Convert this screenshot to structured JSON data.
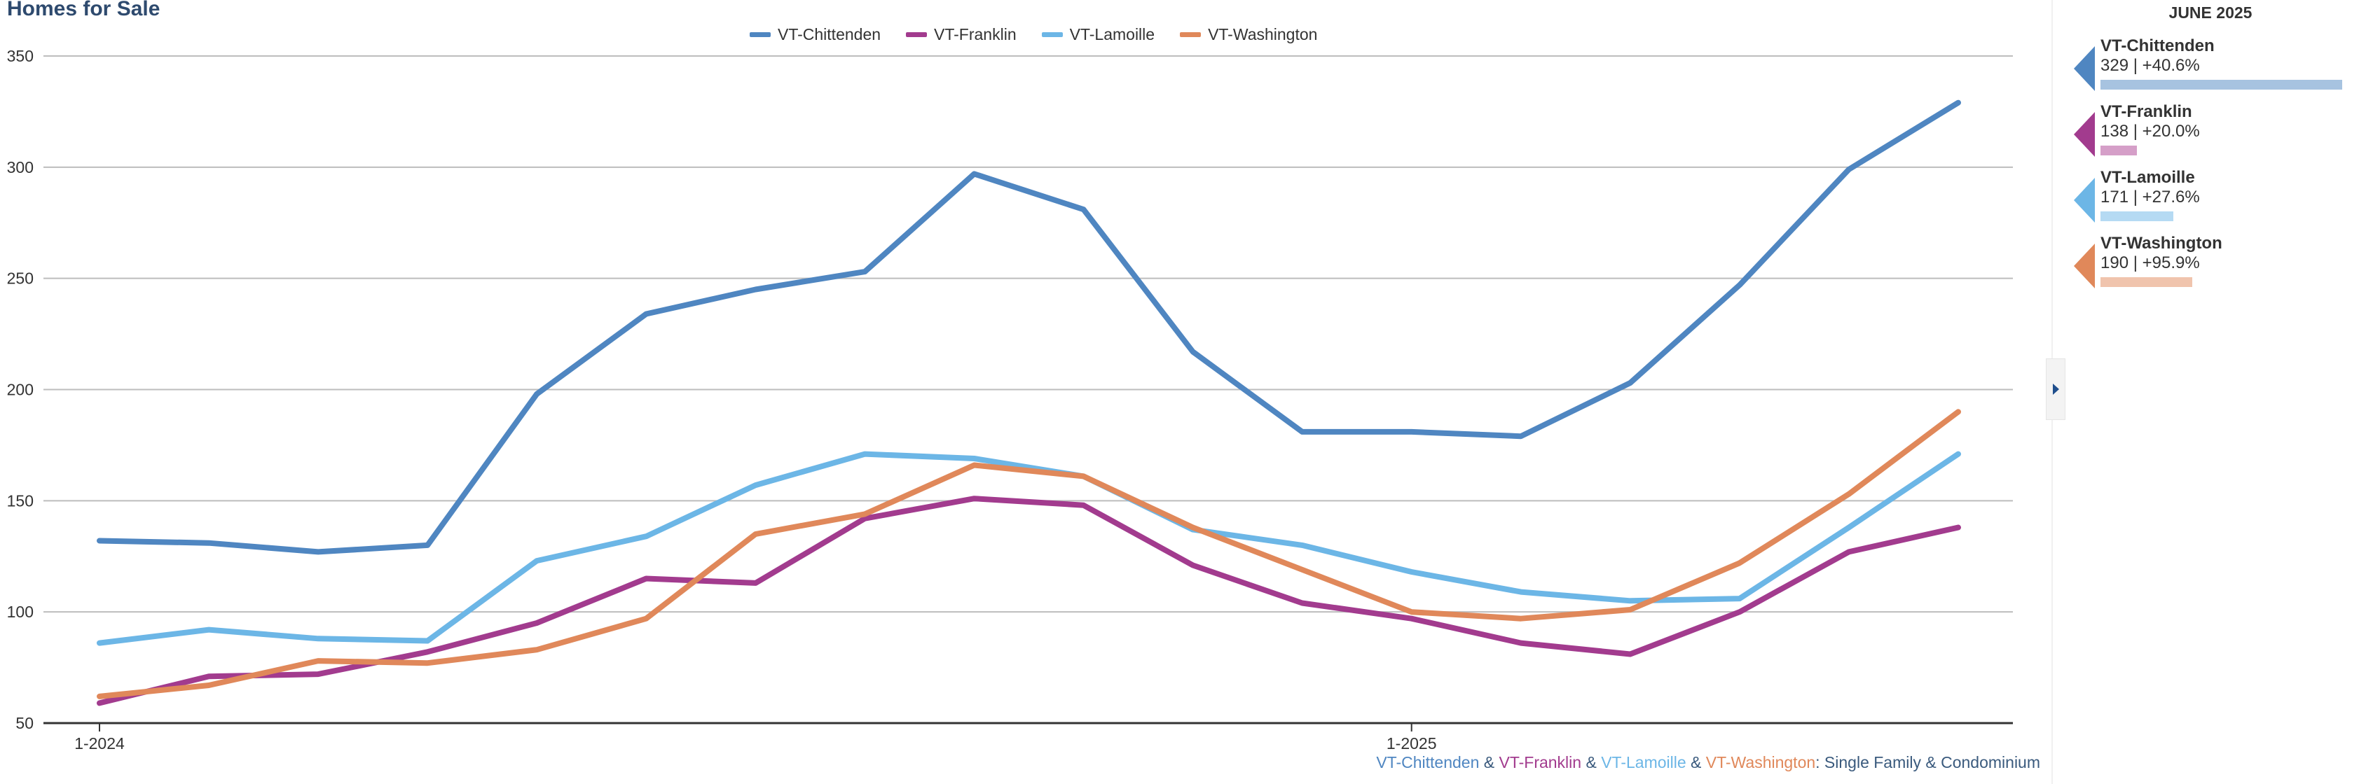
{
  "title": "Homes for Sale",
  "caption": {
    "parts": [
      {
        "text": "VT-Chittenden",
        "color": "#4f86c1"
      },
      {
        "text": " & ",
        "color": "#3a5a7d"
      },
      {
        "text": "VT-Franklin",
        "color": "#a23b8e"
      },
      {
        "text": " & ",
        "color": "#3a5a7d"
      },
      {
        "text": "VT-Lamoille",
        "color": "#6cb6e6"
      },
      {
        "text": " & ",
        "color": "#3a5a7d"
      },
      {
        "text": "VT-Washington",
        "color": "#e0885a"
      },
      {
        "text": ": Single Family & Condominium",
        "color": "#3a5a7d"
      }
    ]
  },
  "side_panel": {
    "heading": "JUNE 2025",
    "regions": [
      {
        "name": "VT-Chittenden",
        "value": "329 | +40.6%",
        "color": "#4f86c1",
        "bar_color": "#a7c3e0",
        "bar_fraction": 1.0
      },
      {
        "name": "VT-Franklin",
        "value": "138 | +20.0%",
        "color": "#a23b8e",
        "bar_color": "#d59fc8",
        "bar_fraction": 0.15
      },
      {
        "name": "VT-Lamoille",
        "value": "171 | +27.6%",
        "color": "#6cb6e6",
        "bar_color": "#b5daf3",
        "bar_fraction": 0.3
      },
      {
        "name": "VT-Washington",
        "value": "190 | +95.9%",
        "color": "#e0885a",
        "bar_color": "#f0c4ad",
        "bar_fraction": 0.38
      }
    ]
  },
  "chart_data": {
    "type": "line",
    "x": [
      "1-2024",
      "2-2024",
      "3-2024",
      "4-2024",
      "5-2024",
      "6-2024",
      "7-2024",
      "8-2024",
      "9-2024",
      "10-2024",
      "11-2024",
      "12-2024",
      "1-2025",
      "2-2025",
      "3-2025",
      "4-2025",
      "5-2025",
      "6-2025"
    ],
    "x_tick_labels": [
      "1-2024",
      "1-2025"
    ],
    "y_ticks": [
      50,
      100,
      150,
      200,
      250,
      300,
      350
    ],
    "ylim": [
      50,
      350
    ],
    "grid": true,
    "legend_position": "top-center",
    "series": [
      {
        "name": "VT-Chittenden",
        "color": "#4f86c1",
        "values": [
          132,
          131,
          127,
          130,
          198,
          234,
          245,
          253,
          297,
          281,
          217,
          181,
          181,
          179,
          203,
          247,
          299,
          329
        ]
      },
      {
        "name": "VT-Franklin",
        "color": "#a23b8e",
        "values": [
          59,
          71,
          72,
          82,
          95,
          115,
          113,
          142,
          151,
          148,
          121,
          104,
          97,
          86,
          81,
          100,
          127,
          138
        ]
      },
      {
        "name": "VT-Lamoille",
        "color": "#6cb6e6",
        "values": [
          86,
          92,
          88,
          87,
          123,
          134,
          157,
          171,
          169,
          161,
          137,
          130,
          118,
          109,
          105,
          106,
          138,
          171
        ]
      },
      {
        "name": "VT-Washington",
        "color": "#e0885a",
        "values": [
          62,
          67,
          78,
          77,
          83,
          97,
          135,
          144,
          166,
          161,
          138,
          119,
          100,
          97,
          101,
          122,
          153,
          190
        ]
      }
    ]
  }
}
